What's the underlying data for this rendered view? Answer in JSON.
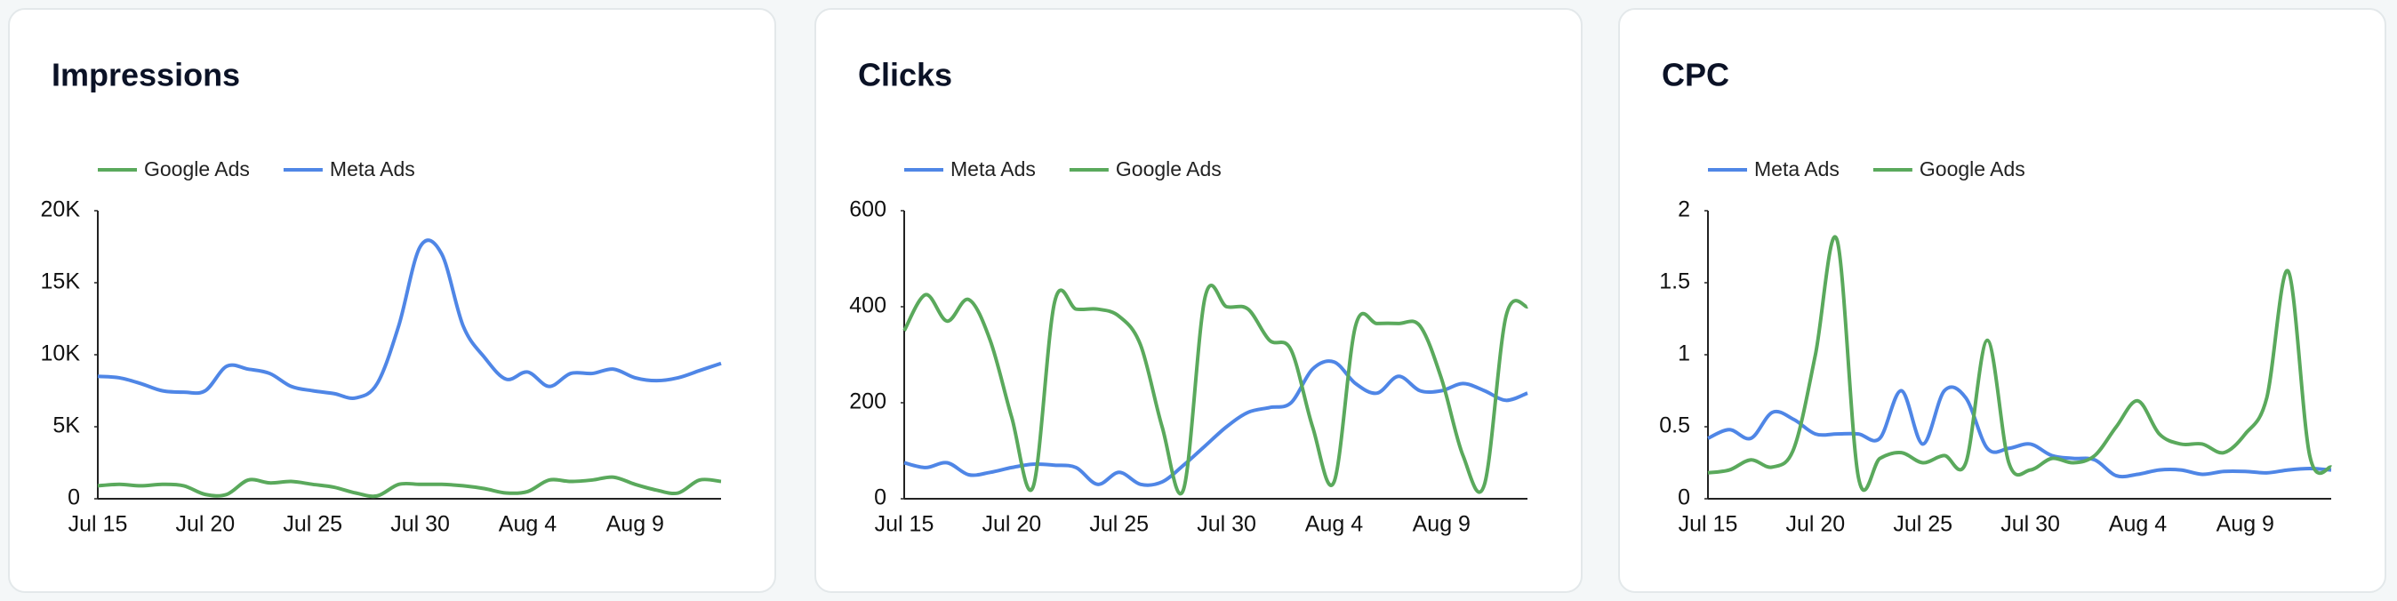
{
  "chart_data": [
    {
      "type": "line",
      "title": "Impressions",
      "categories": [
        "Jul 15",
        null,
        null,
        null,
        null,
        "Jul 20",
        null,
        null,
        null,
        null,
        "Jul 25",
        null,
        null,
        null,
        null,
        "Jul 30",
        null,
        null,
        null,
        null,
        "Aug 4",
        null,
        null,
        null,
        null,
        "Aug 9",
        null,
        null,
        null,
        null
      ],
      "series": [
        {
          "name": "Google Ads",
          "color": "#5aa95c",
          "values": [
            900,
            1000,
            900,
            1000,
            900,
            300,
            300,
            1300,
            1100,
            1200,
            1000,
            800,
            400,
            200,
            1000,
            1000,
            1000,
            900,
            700,
            400,
            500,
            1300,
            1200,
            1300,
            1500,
            1000,
            600,
            400,
            1300,
            1200
          ]
        },
        {
          "name": "Meta Ads",
          "color": "#4f86e6",
          "values": [
            8500,
            8400,
            8000,
            7500,
            7400,
            7500,
            9200,
            9000,
            8700,
            7800,
            7500,
            7300,
            7000,
            8000,
            12000,
            17500,
            17000,
            12000,
            9800,
            8300,
            8800,
            7800,
            8700,
            8700,
            9000,
            8400,
            8200,
            8400,
            8900,
            9400
          ]
        }
      ],
      "ylim": [
        0,
        20000
      ],
      "yticks": [
        0,
        {
          "value": 5000,
          "label": "5K"
        },
        {
          "value": 10000,
          "label": "10K"
        },
        {
          "value": 15000,
          "label": "15K"
        },
        {
          "value": 20000,
          "label": "20K"
        }
      ]
    },
    {
      "type": "line",
      "title": "Clicks",
      "categories": [
        "Jul 15",
        null,
        null,
        null,
        null,
        "Jul 20",
        null,
        null,
        null,
        null,
        "Jul 25",
        null,
        null,
        null,
        null,
        "Jul 30",
        null,
        null,
        null,
        null,
        "Aug 4",
        null,
        null,
        null,
        null,
        "Aug 9",
        null,
        null,
        null,
        null
      ],
      "series": [
        {
          "name": "Meta Ads",
          "color": "#4f86e6",
          "values": [
            75,
            65,
            75,
            50,
            55,
            65,
            72,
            70,
            65,
            30,
            55,
            30,
            35,
            70,
            110,
            150,
            180,
            190,
            200,
            270,
            285,
            240,
            220,
            255,
            225,
            225,
            240,
            225,
            205,
            220
          ]
        },
        {
          "name": "Google Ads",
          "color": "#5aa95c",
          "values": [
            350,
            425,
            370,
            415,
            330,
            170,
            25,
            410,
            395,
            395,
            380,
            320,
            150,
            20,
            420,
            400,
            395,
            330,
            310,
            150,
            35,
            360,
            365,
            365,
            360,
            250,
            90,
            30,
            380,
            400
          ]
        }
      ],
      "ylim": [
        0,
        600
      ],
      "yticks": [
        0,
        200,
        400,
        600
      ]
    },
    {
      "type": "line",
      "title": "CPC",
      "categories": [
        "Jul 15",
        null,
        null,
        null,
        null,
        "Jul 20",
        null,
        null,
        null,
        null,
        "Jul 25",
        null,
        null,
        null,
        null,
        "Jul 30",
        null,
        null,
        null,
        null,
        "Aug 4",
        null,
        null,
        null,
        null,
        "Aug 9",
        null,
        null,
        null,
        null
      ],
      "series": [
        {
          "name": "Meta Ads",
          "color": "#4f86e6",
          "values": [
            0.42,
            0.48,
            0.42,
            0.6,
            0.55,
            0.45,
            0.45,
            0.45,
            0.42,
            0.75,
            0.38,
            0.75,
            0.7,
            0.35,
            0.35,
            0.38,
            0.3,
            0.28,
            0.27,
            0.16,
            0.17,
            0.2,
            0.2,
            0.17,
            0.19,
            0.19,
            0.18,
            0.2,
            0.21,
            0.2
          ]
        },
        {
          "name": "Google Ads",
          "color": "#5aa95c",
          "values": [
            0.18,
            0.2,
            0.27,
            0.22,
            0.35,
            1.0,
            1.8,
            0.15,
            0.28,
            0.32,
            0.25,
            0.3,
            0.25,
            1.1,
            0.25,
            0.2,
            0.28,
            0.25,
            0.3,
            0.5,
            0.68,
            0.45,
            0.38,
            0.38,
            0.32,
            0.45,
            0.7,
            1.58,
            0.3,
            0.22
          ]
        }
      ],
      "ylim": [
        0,
        2
      ],
      "yticks": [
        0,
        0.5,
        1,
        1.5,
        2
      ]
    }
  ]
}
